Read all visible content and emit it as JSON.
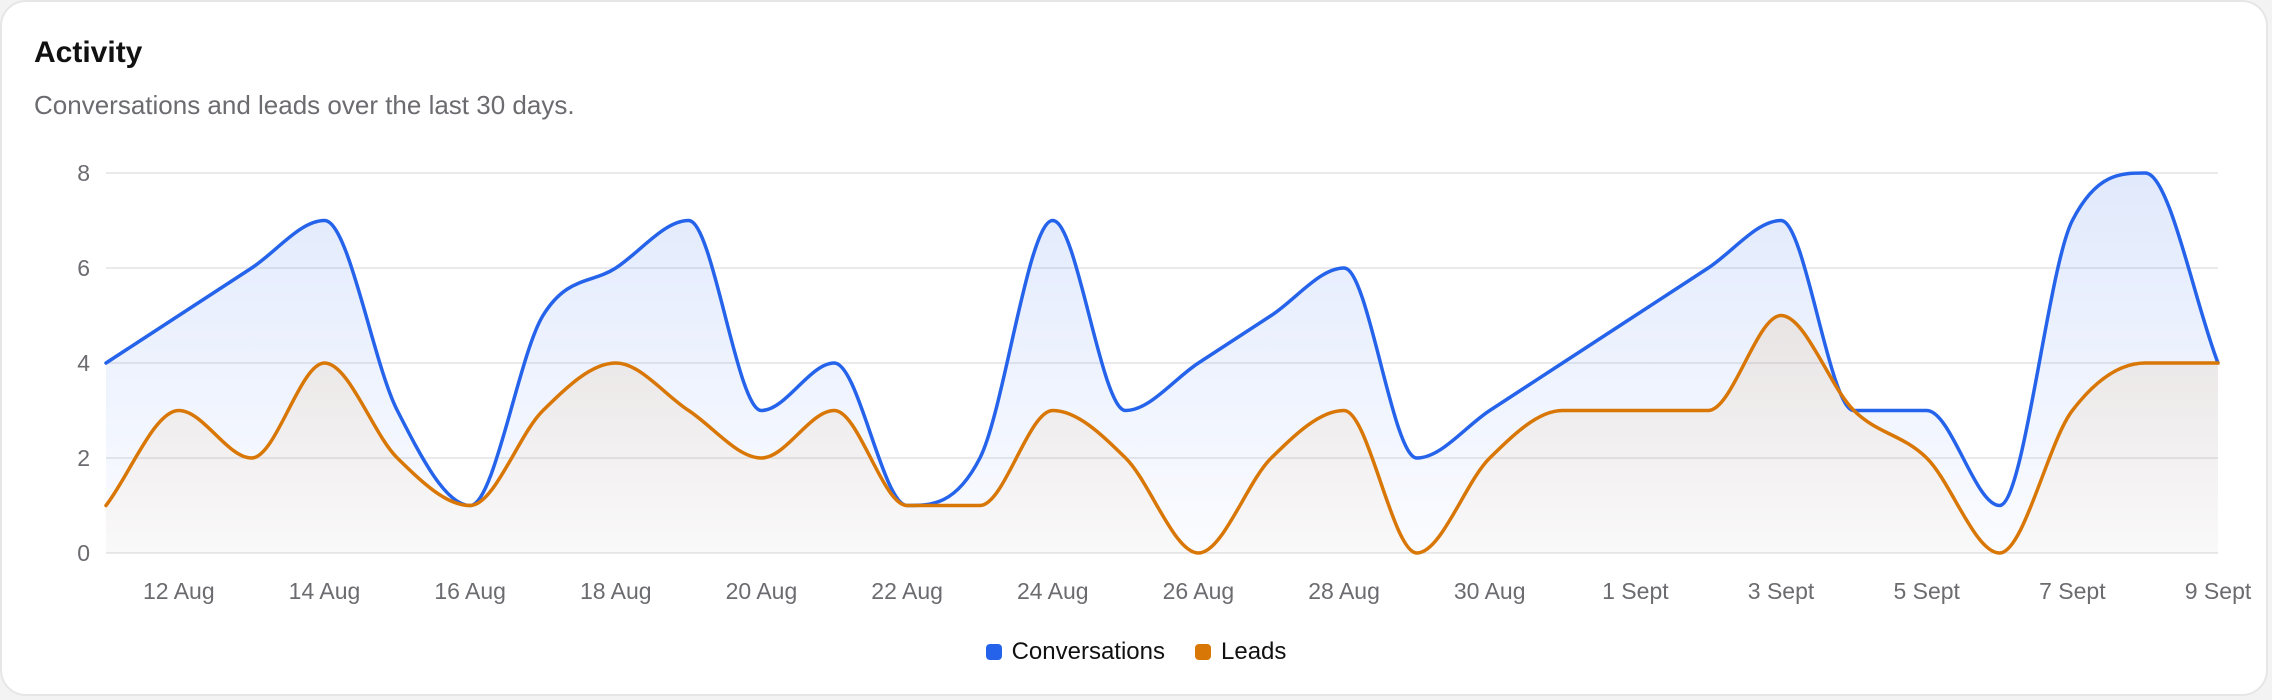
{
  "card": {
    "title": "Activity",
    "subtitle": "Conversations and leads over the last 30 days."
  },
  "colors": {
    "conversations": "#2563eb",
    "leads": "#d97706",
    "grid": "#e4e4e7"
  },
  "chart_data": {
    "type": "area",
    "title": "Activity",
    "subtitle": "Conversations and leads over the last 30 days.",
    "xlabel": "",
    "ylabel": "",
    "ylim": [
      0,
      8
    ],
    "yticks": [
      0,
      2,
      4,
      6,
      8
    ],
    "grid": true,
    "legend_position": "bottom-center",
    "x": [
      "11 Aug",
      "12 Aug",
      "13 Aug",
      "14 Aug",
      "15 Aug",
      "16 Aug",
      "17 Aug",
      "18 Aug",
      "19 Aug",
      "20 Aug",
      "21 Aug",
      "22 Aug",
      "23 Aug",
      "24 Aug",
      "25 Aug",
      "26 Aug",
      "27 Aug",
      "28 Aug",
      "29 Aug",
      "30 Aug",
      "31 Aug",
      "1 Sept",
      "2 Sept",
      "3 Sept",
      "4 Sept",
      "5 Sept",
      "6 Sept",
      "7 Sept",
      "8 Sept",
      "9 Sept"
    ],
    "xtick_labels": [
      "12 Aug",
      "14 Aug",
      "16 Aug",
      "18 Aug",
      "20 Aug",
      "22 Aug",
      "24 Aug",
      "26 Aug",
      "28 Aug",
      "30 Aug",
      "1 Sept",
      "3 Sept",
      "5 Sept",
      "7 Sept",
      "9 Sept"
    ],
    "series": [
      {
        "name": "Conversations",
        "values": [
          4,
          5,
          6,
          7,
          3,
          1,
          5,
          6,
          7,
          3,
          4,
          1,
          2,
          7,
          3,
          4,
          5,
          6,
          2,
          3,
          4,
          5,
          6,
          7,
          3,
          3,
          1,
          7,
          8,
          4
        ]
      },
      {
        "name": "Leads",
        "values": [
          1,
          3,
          2,
          4,
          2,
          1,
          3,
          4,
          3,
          2,
          3,
          1,
          1,
          3,
          2,
          0,
          2,
          3,
          0,
          2,
          3,
          3,
          3,
          5,
          3,
          2,
          0,
          3,
          4,
          4
        ]
      }
    ]
  }
}
